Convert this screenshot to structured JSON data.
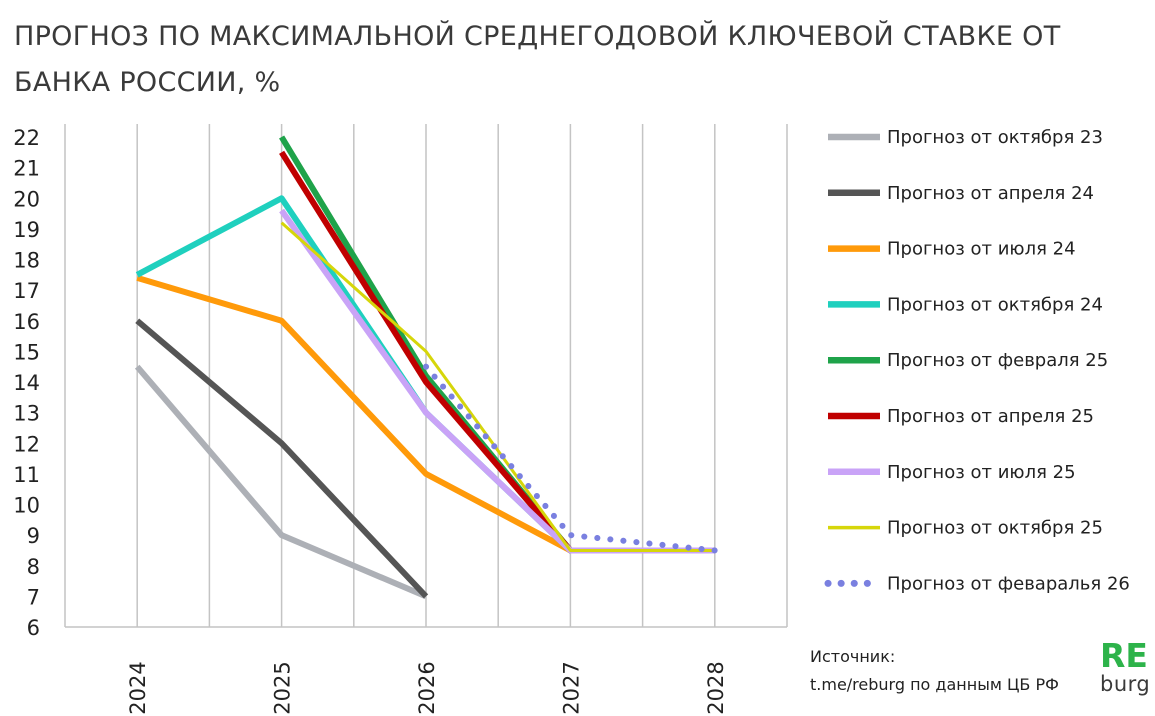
{
  "title": "ПРОГНОЗ ПО МАКСИМАЛЬНОЙ СРЕДНЕГОДОВОЙ КЛЮЧЕВОЙ СТАВКЕ ОТ БАНКА РОССИИ, %",
  "source": {
    "label": "Источник:",
    "text": "t.me/reburg по данным ЦБ РФ"
  },
  "logo": {
    "top": "RE",
    "bottom": "burg"
  },
  "chart_data": {
    "type": "line",
    "title": "ПРОГНОЗ ПО МАКСИМАЛЬНОЙ СРЕДНЕГОДОВОЙ КЛЮЧЕВОЙ СТАВКЕ ОТ БАНКА РОССИИ, %",
    "xlabel": "",
    "ylabel": "",
    "categories": [
      "2024",
      "2025",
      "2026",
      "2027",
      "2028"
    ],
    "ylim": [
      6,
      22
    ],
    "yticks": [
      "6",
      "7",
      "8",
      "9",
      "10",
      "11",
      "12",
      "13",
      "14",
      "15",
      "16",
      "17",
      "18",
      "19",
      "20",
      "21",
      "22"
    ],
    "grid": "vertical",
    "legend_position": "right",
    "series": [
      {
        "name": "Прогноз от октября 23",
        "color": "#adb0b6",
        "style": "solid",
        "width": "thick",
        "x": [
          "2024",
          "2025",
          "2026"
        ],
        "values": [
          14.5,
          9,
          7
        ]
      },
      {
        "name": "Прогноз от апреля 24",
        "color": "#555555",
        "style": "solid",
        "width": "thick",
        "x": [
          "2024",
          "2025",
          "2026"
        ],
        "values": [
          16,
          12,
          7
        ]
      },
      {
        "name": "Прогноз от июля 24",
        "color": "#ff9a0a",
        "style": "solid",
        "width": "thick",
        "x": [
          "2024",
          "2025",
          "2026",
          "2027",
          "2028"
        ],
        "values": [
          17.4,
          16,
          11,
          8.5,
          8.5
        ]
      },
      {
        "name": "Прогноз от октября 24",
        "color": "#1fd0be",
        "style": "solid",
        "width": "thick",
        "x": [
          "2024",
          "2025",
          "2026",
          "2027",
          "2028"
        ],
        "values": [
          17.5,
          20,
          13,
          8.5,
          8.5
        ]
      },
      {
        "name": "Прогноз от февраля 25",
        "color": "#1fa34a",
        "style": "solid",
        "width": "thick",
        "x": [
          "2025",
          "2026",
          "2027",
          "2028"
        ],
        "values": [
          22,
          14.2,
          8.5,
          8.5
        ]
      },
      {
        "name": "Прогноз от апреля 25",
        "color": "#c00000",
        "style": "solid",
        "width": "thick",
        "x": [
          "2025",
          "2026",
          "2027",
          "2028"
        ],
        "values": [
          21.5,
          14,
          8.5,
          8.5
        ]
      },
      {
        "name": "Прогноз от июля 25",
        "color": "#c9a3f7",
        "style": "solid",
        "width": "thick",
        "x": [
          "2025",
          "2026",
          "2027",
          "2028"
        ],
        "values": [
          19.6,
          13,
          8.5,
          8.5
        ]
      },
      {
        "name": "Прогноз от октября 25",
        "color": "#d6d60a",
        "style": "solid",
        "width": "thin",
        "x": [
          "2025",
          "2026",
          "2027",
          "2028"
        ],
        "values": [
          19.2,
          15,
          8.5,
          8.5
        ]
      },
      {
        "name": "Прогноз от феваралья 26",
        "color": "#7a80e0",
        "style": "dotted",
        "width": "thin",
        "x": [
          "2026",
          "2027",
          "2028"
        ],
        "values": [
          14.5,
          9,
          8.5
        ]
      }
    ]
  }
}
